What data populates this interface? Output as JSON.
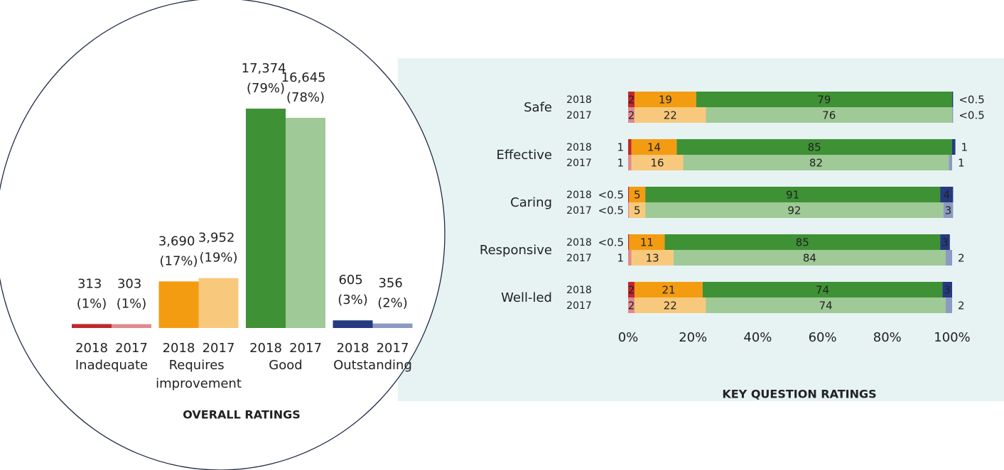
{
  "chart_data": [
    {
      "type": "bar",
      "title": "OVERALL RATINGS",
      "categories": [
        "Inadequate",
        "Requires improvement",
        "Good",
        "Outstanding"
      ],
      "series": [
        {
          "name": "2018",
          "colors": [
            "#c0282d",
            "#f39c12",
            "#3e9135",
            "#263a80"
          ],
          "values": [
            313,
            3690,
            17374,
            605
          ],
          "value_labels": [
            "313 (1%)",
            "3,690 (17%)",
            "17,374 (79%)",
            "605 (3%)"
          ]
        },
        {
          "name": "2017",
          "colors": [
            "#e08a8c",
            "#f8c97c",
            "#9fc996",
            "#8c9ac2"
          ],
          "values": [
            303,
            3952,
            16645,
            356
          ],
          "value_labels": [
            "303 (1%)",
            "3,952 (19%)",
            "16,645 (78%)",
            "356 (2%)"
          ]
        }
      ]
    },
    {
      "type": "stacked_bar_h",
      "title": "KEY QUESTION RATINGS",
      "colors": [
        [
          "#c0282d",
          "#f39c12",
          "#3e9135",
          "#263a80"
        ],
        [
          "#e08a8c",
          "#f8c97c",
          "#9fc996",
          "#8c9ac2"
        ]
      ],
      "xlim": [
        0,
        100
      ],
      "xticks": [
        {
          "value": 0,
          "label": "0%"
        },
        {
          "value": 20,
          "label": "20%"
        },
        {
          "value": 40,
          "label": "40%"
        },
        {
          "value": 60,
          "label": "60%"
        },
        {
          "value": 80,
          "label": "80%"
        },
        {
          "value": 100,
          "label": "100%"
        }
      ],
      "rows": [
        {
          "label": "Safe",
          "bars": [
            {
              "year": "2018",
              "values": [
                2,
                19,
                79,
                0.3
              ],
              "value_labels": [
                "2",
                "19",
                "79",
                "<0.5"
              ]
            },
            {
              "year": "2017",
              "values": [
                2,
                22,
                76,
                0.3
              ],
              "value_labels": [
                "2",
                "22",
                "76",
                "<0.5"
              ]
            }
          ]
        },
        {
          "label": "Effective",
          "bars": [
            {
              "year": "2018",
              "values": [
                1,
                14,
                85,
                1
              ],
              "value_labels": [
                "1",
                "14",
                "85",
                "1"
              ]
            },
            {
              "year": "2017",
              "values": [
                1,
                16,
                82,
                1
              ],
              "value_labels": [
                "1",
                "16",
                "82",
                "1"
              ]
            }
          ]
        },
        {
          "label": "Caring",
          "bars": [
            {
              "year": "2018",
              "values": [
                0.3,
                5,
                91,
                4
              ],
              "value_labels": [
                "<0.5",
                "5",
                "91",
                "4"
              ]
            },
            {
              "year": "2017",
              "values": [
                0.3,
                5,
                92,
                3
              ],
              "value_labels": [
                "<0.5",
                "5",
                "92",
                "3"
              ]
            }
          ]
        },
        {
          "label": "Responsive",
          "bars": [
            {
              "year": "2018",
              "values": [
                0.3,
                11,
                85,
                3
              ],
              "value_labels": [
                "<0.5",
                "11",
                "85",
                "3"
              ]
            },
            {
              "year": "2017",
              "values": [
                1,
                13,
                84,
                2
              ],
              "value_labels": [
                "1",
                "13",
                "84",
                "2"
              ]
            }
          ]
        },
        {
          "label": "Well-led",
          "bars": [
            {
              "year": "2018",
              "values": [
                2,
                21,
                74,
                3
              ],
              "value_labels": [
                "2",
                "21",
                "74",
                "3"
              ]
            },
            {
              "year": "2017",
              "values": [
                2,
                22,
                74,
                2
              ],
              "value_labels": [
                "2",
                "22",
                "74",
                "2"
              ]
            }
          ]
        }
      ]
    }
  ]
}
